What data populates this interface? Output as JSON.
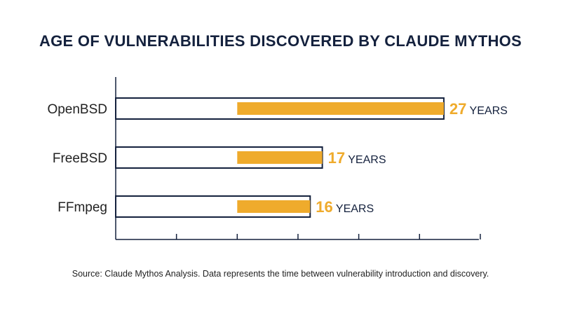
{
  "title": "AGE OF VULNERABILITIES DISCOVERED BY CLAUDE MYTHOS",
  "source": "Source: Claude Mythos Analysis. Data represents the time between vulnerability introduction and discovery.",
  "colors": {
    "navy": "#14213d",
    "accent": "#efab2c",
    "text": "#222222"
  },
  "chart_data": {
    "type": "bar",
    "orientation": "horizontal",
    "categories": [
      "OpenBSD",
      "FreeBSD",
      "FFmpeg"
    ],
    "values": [
      27,
      17,
      16
    ],
    "value_unit": "YEARS",
    "xlim": [
      0,
      30
    ],
    "x_tick_step": 5,
    "grid": false,
    "legend": "none"
  }
}
